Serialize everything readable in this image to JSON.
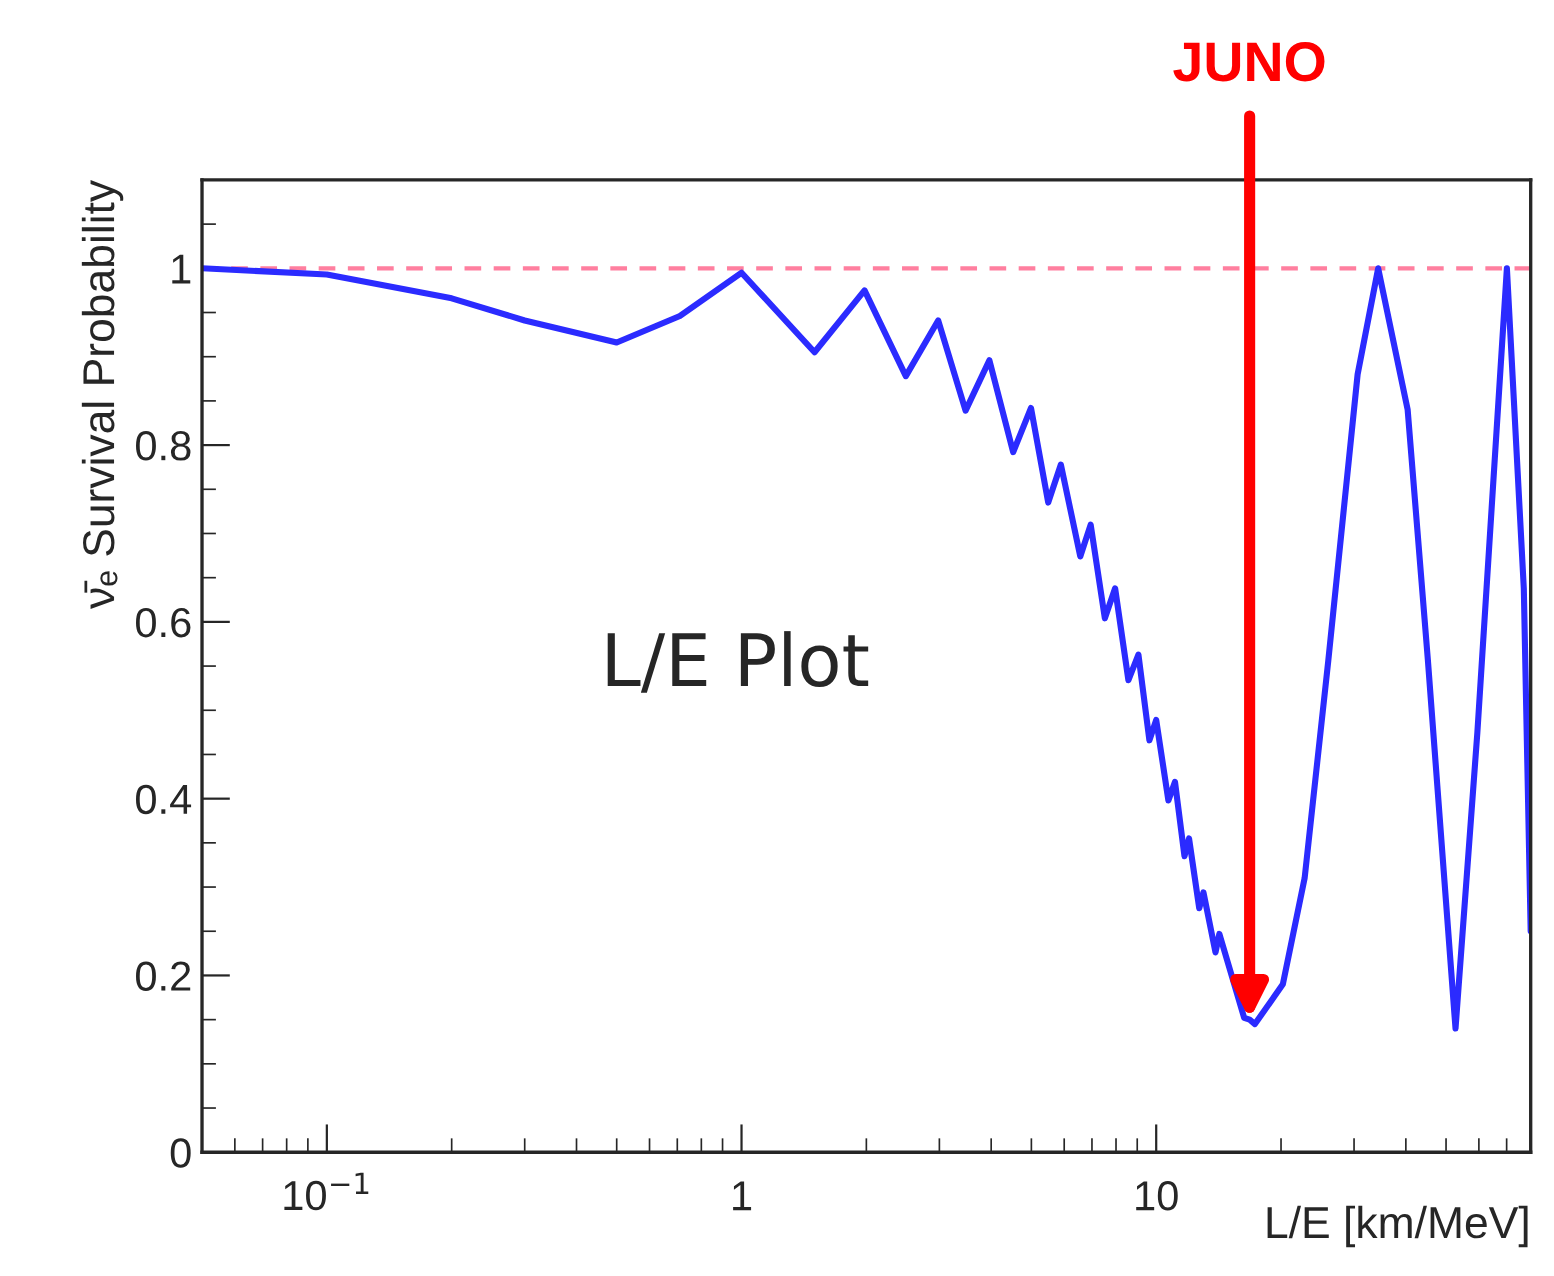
{
  "chart_data": {
    "type": "line",
    "xlabel": "L/E [km/MeV]",
    "ylabel": "ν̄ₑ Survival Probability",
    "log": "x",
    "xlim": [
      0.05,
      80
    ],
    "xticks": [
      {
        "value": 0.1,
        "label": "10$^{−1}$"
      },
      1,
      10
    ],
    "ylim": [
      0,
      1.1
    ],
    "yticks": [
      0,
      0.2,
      0.4,
      0.6,
      0.8,
      1
    ],
    "grid": false,
    "legend": false,
    "marker": "none",
    "line_style": "solid",
    "series": [
      {
        "color": "#2b2bff",
        "x": [
          0.05,
          0.1,
          0.2,
          0.3,
          0.5,
          0.71,
          1.0,
          1.5,
          1.98,
          2.49,
          2.98,
          3.47,
          3.96,
          4.52,
          4.99,
          5.49,
          5.89,
          6.56,
          6.95,
          7.52,
          7.96,
          8.57,
          9.06,
          9.63,
          10.0,
          10.7,
          11.1,
          11.7,
          12.0,
          12.7,
          13.0,
          13.9,
          14.2,
          16.3,
          16.8,
          17.3,
          20.2,
          22.8,
          26.0,
          30.6,
          34.3,
          40.4,
          45.2,
          52.7,
          59.5,
          70.1,
          77,
          80
        ],
        "values": [
          1.0,
          0.993,
          0.966,
          0.941,
          0.916,
          0.946,
          0.995,
          0.905,
          0.975,
          0.878,
          0.941,
          0.839,
          0.896,
          0.792,
          0.842,
          0.735,
          0.778,
          0.674,
          0.71,
          0.604,
          0.638,
          0.534,
          0.563,
          0.466,
          0.489,
          0.398,
          0.419,
          0.335,
          0.355,
          0.276,
          0.294,
          0.226,
          0.247,
          0.152,
          0.15,
          0.145,
          0.19,
          0.31,
          0.556,
          0.88,
          1.0,
          0.84,
          0.557,
          0.14,
          0.475,
          1.0,
          0.638,
          0.25
        ]
      }
    ],
    "ref_lines": [
      {
        "axis": "y",
        "value": 1,
        "color": "#ff7f9f",
        "line_style": "dashed"
      }
    ],
    "annotations": [
      "L/E Plot",
      {
        "text": "JUNO",
        "x": 16.8,
        "y": 0.15
      }
    ]
  }
}
